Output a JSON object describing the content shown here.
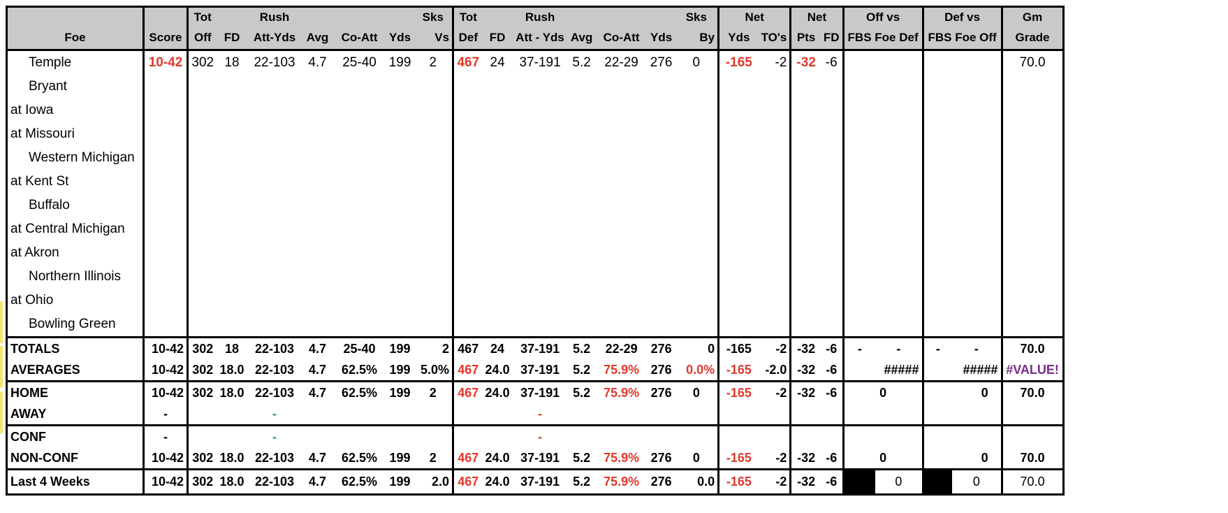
{
  "headers": {
    "row1": {
      "tot_off": "Tot",
      "rush_off": "Rush",
      "sks_vs": "Sks",
      "tot_def": "Tot",
      "rush_def": "Rush",
      "sks_by": "Sks",
      "net": "Net",
      "net_pts": "Net",
      "off_vs": "Off vs",
      "def_vs": "Def vs",
      "gm": "Gm"
    },
    "row2": {
      "foe": "Foe",
      "score": "Score",
      "off": "Off",
      "fd": "FD",
      "att_yds": "Att-Yds",
      "avg": "Avg",
      "co_att": "Co-Att",
      "yds": "Yds",
      "vs": "Vs",
      "def": "Def",
      "fd2": "FD",
      "att_yds2": "Att - Yds",
      "avg2": "Avg",
      "co_att2": "Co-Att",
      "yds2": "Yds",
      "by": "By",
      "net_yds": "Yds",
      "tos": "TO's",
      "pts": "Pts",
      "net_fd": "FD",
      "fbs_foe_def": "FBS Foe Def",
      "fbs_foe_off": "FBS Foe Off",
      "grade": "Grade"
    }
  },
  "games": [
    {
      "foe": "Temple",
      "home": true,
      "score": "10-42",
      "off": "302",
      "fd": "18",
      "rush": "22-103",
      "avg": "4.7",
      "coatt": "25-40",
      "yds": "199",
      "sksvs": "2",
      "def": "467",
      "dfd": "24",
      "drush": "37-191",
      "davg": "5.2",
      "dcoatt": "22-29",
      "dyds": "276",
      "sksby": "0",
      "netyds": "-165",
      "tos": "-2",
      "pts": "-32",
      "netfd": "-6",
      "grade": "70.0"
    },
    {
      "foe": "Bryant",
      "home": true
    },
    {
      "foe": "at Iowa",
      "home": false
    },
    {
      "foe": "at Missouri",
      "home": false
    },
    {
      "foe": "Western Michigan",
      "home": true
    },
    {
      "foe": "at Kent St",
      "home": false
    },
    {
      "foe": "Buffalo",
      "home": true
    },
    {
      "foe": "at Central Michigan",
      "home": false
    },
    {
      "foe": "at Akron",
      "home": false
    },
    {
      "foe": "Northern Illinois",
      "home": true
    },
    {
      "foe": "at Ohio",
      "home": false
    },
    {
      "foe": "Bowling Green",
      "home": true
    }
  ],
  "totals": {
    "label": "TOTALS",
    "score": "10-42",
    "off": "302",
    "fd": "18",
    "rush": "22-103",
    "avg": "4.7",
    "coatt": "25-40",
    "yds": "199",
    "sksvs": "2",
    "def": "467",
    "dfd": "24",
    "drush": "37-191",
    "davg": "5.2",
    "dcoatt": "22-29",
    "dyds": "276",
    "sksby": "0",
    "netyds": "-165",
    "tos": "-2",
    "pts": "-32",
    "netfd": "-6",
    "offvs_a": "-",
    "offvs_b": "-",
    "defvs_a": "-",
    "defvs_b": "-",
    "grade": "70.0"
  },
  "averages": {
    "label": "AVERAGES",
    "score": "10-42",
    "off": "302",
    "fd": "18.0",
    "rush": "22-103",
    "avg": "4.7",
    "coatt": "62.5%",
    "yds": "199",
    "sksvs": "5.0%",
    "def": "467",
    "dfd": "24.0",
    "drush": "37-191",
    "davg": "5.2",
    "dcoatt": "75.9%",
    "dyds": "276",
    "sksby": "0.0%",
    "netyds": "-165",
    "tos": "-2.0",
    "pts": "-32",
    "netfd": "-6",
    "offvs": "#####",
    "defvs": "#####",
    "grade": "#VALUE!"
  },
  "home": {
    "label": "HOME",
    "score": "10-42",
    "off": "302",
    "fd": "18.0",
    "rush": "22-103",
    "avg": "4.7",
    "coatt": "62.5%",
    "yds": "199",
    "sksvs": "2",
    "def": "467",
    "dfd": "24.0",
    "drush": "37-191",
    "davg": "5.2",
    "dcoatt": "75.9%",
    "dyds": "276",
    "sksby": "0",
    "netyds": "-165",
    "tos": "-2",
    "pts": "-32",
    "netfd": "-6",
    "offvs": "0",
    "defvs": "0",
    "grade": "70.0"
  },
  "away": {
    "label": "AWAY",
    "score": "-",
    "rush": "-",
    "drush": "-"
  },
  "conf": {
    "label": "CONF",
    "score": "-",
    "rush": "-",
    "drush": "-"
  },
  "nonconf": {
    "label": "NON-CONF",
    "score": "10-42",
    "off": "302",
    "fd": "18.0",
    "rush": "22-103",
    "avg": "4.7",
    "coatt": "62.5%",
    "yds": "199",
    "sksvs": "2",
    "def": "467",
    "dfd": "24.0",
    "drush": "37-191",
    "davg": "5.2",
    "dcoatt": "75.9%",
    "dyds": "276",
    "sksby": "0",
    "netyds": "-165",
    "tos": "-2",
    "pts": "-32",
    "netfd": "-6",
    "offvs": "0",
    "defvs": "0",
    "grade": "70.0"
  },
  "last4": {
    "label": "Last 4 Weeks",
    "score": "10-42",
    "off": "302",
    "fd": "18.0",
    "rush": "22-103",
    "avg": "4.7",
    "coatt": "62.5%",
    "yds": "199",
    "sksvs": "2.0",
    "def": "467",
    "dfd": "24.0",
    "drush": "37-191",
    "davg": "5.2",
    "dcoatt": "75.9%",
    "dyds": "276",
    "sksby": "0.0",
    "netyds": "-165",
    "tos": "-2",
    "pts": "-32",
    "netfd": "-6",
    "offvs": "0",
    "defvs": "0",
    "grade": "70.0"
  },
  "colors": {
    "red": "#e0392b",
    "green": "#2e9e3e",
    "purple": "#7a2a8a",
    "header_bg": "#c9c9c9"
  }
}
